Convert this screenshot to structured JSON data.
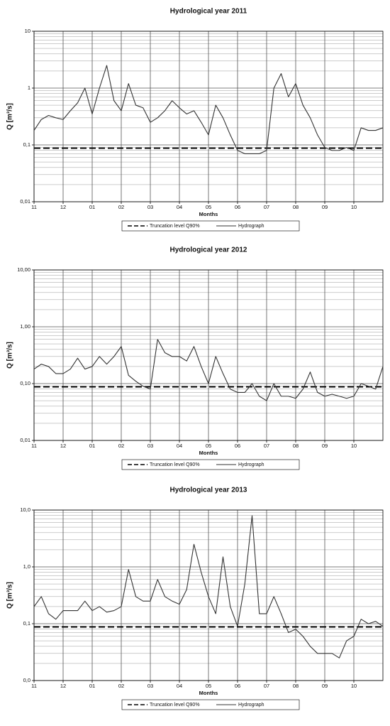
{
  "chart_data": [
    {
      "type": "line",
      "title": "Hydrological year 2011",
      "xlabel": "Months",
      "ylabel": "Q [m³/s]",
      "log_scale_y": true,
      "grid": true,
      "minor_grid": true,
      "legend": "bottom",
      "xlim": [
        0,
        12
      ],
      "xticks": [
        {
          "value": 0,
          "label": "11"
        },
        {
          "value": 1,
          "label": "12"
        },
        {
          "value": 2,
          "label": "01"
        },
        {
          "value": 3,
          "label": "02"
        },
        {
          "value": 4,
          "label": "03"
        },
        {
          "value": 5,
          "label": "04"
        },
        {
          "value": 6,
          "label": "05"
        },
        {
          "value": 7,
          "label": "06"
        },
        {
          "value": 8,
          "label": "07"
        },
        {
          "value": 9,
          "label": "08"
        },
        {
          "value": 10,
          "label": "09"
        },
        {
          "value": 11,
          "label": "10"
        }
      ],
      "ylim": [
        0.01,
        10
      ],
      "yticks": [
        {
          "value": 0.01,
          "label": "0,01"
        },
        {
          "value": 0.1,
          "label": "0,1"
        },
        1,
        10
      ],
      "series": [
        {
          "name": "Truncation level Q90%",
          "color": "#000000",
          "line_style": "dashed",
          "x": [
            0,
            12
          ],
          "values": [
            0.088,
            0.088
          ]
        },
        {
          "name": "Hydrograph",
          "color": "#333333",
          "line_style": "solid",
          "x": [
            0,
            0.25,
            0.5,
            0.75,
            1,
            1.25,
            1.5,
            1.75,
            2,
            2.25,
            2.5,
            2.75,
            3,
            3.25,
            3.5,
            3.75,
            4,
            4.25,
            4.5,
            4.75,
            5,
            5.25,
            5.5,
            5.75,
            6,
            6.25,
            6.5,
            6.75,
            7,
            7.25,
            7.5,
            7.75,
            8,
            8.25,
            8.5,
            8.75,
            9,
            9.25,
            9.5,
            9.75,
            10,
            10.25,
            10.5,
            10.75,
            11,
            11.25,
            11.5,
            11.75,
            12
          ],
          "values": [
            0.18,
            0.28,
            0.33,
            0.3,
            0.28,
            0.4,
            0.55,
            1.0,
            0.35,
            1.0,
            2.5,
            0.6,
            0.4,
            1.2,
            0.5,
            0.45,
            0.25,
            0.3,
            0.4,
            0.6,
            0.45,
            0.35,
            0.4,
            0.25,
            0.15,
            0.5,
            0.3,
            0.15,
            0.08,
            0.07,
            0.07,
            0.07,
            0.08,
            1.0,
            1.8,
            0.7,
            1.2,
            0.5,
            0.3,
            0.15,
            0.09,
            0.08,
            0.08,
            0.09,
            0.08,
            0.2,
            0.18,
            0.18,
            0.2
          ]
        }
      ]
    },
    {
      "type": "line",
      "title": "Hydrological year 2012",
      "xlabel": "Months",
      "ylabel": "Q [m³/s]",
      "log_scale_y": true,
      "grid": true,
      "minor_grid": true,
      "legend": "bottom",
      "xlim": [
        0,
        12
      ],
      "xticks": [
        {
          "value": 0,
          "label": "11"
        },
        {
          "value": 1,
          "label": "12"
        },
        {
          "value": 2,
          "label": "01"
        },
        {
          "value": 3,
          "label": "02"
        },
        {
          "value": 4,
          "label": "03"
        },
        {
          "value": 5,
          "label": "04"
        },
        {
          "value": 6,
          "label": "05"
        },
        {
          "value": 7,
          "label": "06"
        },
        {
          "value": 8,
          "label": "07"
        },
        {
          "value": 9,
          "label": "08"
        },
        {
          "value": 10,
          "label": "09"
        },
        {
          "value": 11,
          "label": "10"
        }
      ],
      "ylim": [
        0.01,
        10
      ],
      "yticks": [
        {
          "value": 0.01,
          "label": "0,01"
        },
        {
          "value": 0.1,
          "label": "0,10"
        },
        {
          "value": 1,
          "label": "1,00"
        },
        {
          "value": 10,
          "label": "10,00"
        }
      ],
      "series": [
        {
          "name": "Truncation level Q90%",
          "color": "#000000",
          "line_style": "dashed",
          "x": [
            0,
            12
          ],
          "values": [
            0.088,
            0.088
          ]
        },
        {
          "name": "Hydrograph",
          "color": "#333333",
          "line_style": "solid",
          "x": [
            0,
            0.25,
            0.5,
            0.75,
            1,
            1.25,
            1.5,
            1.75,
            2,
            2.25,
            2.5,
            2.75,
            3,
            3.25,
            3.5,
            3.75,
            4,
            4.25,
            4.5,
            4.75,
            5,
            5.25,
            5.5,
            5.75,
            6,
            6.25,
            6.5,
            6.75,
            7,
            7.25,
            7.5,
            7.75,
            8,
            8.25,
            8.5,
            8.75,
            9,
            9.25,
            9.5,
            9.75,
            10,
            10.25,
            10.5,
            10.75,
            11,
            11.25,
            11.5,
            11.75,
            12
          ],
          "values": [
            0.18,
            0.22,
            0.2,
            0.15,
            0.15,
            0.18,
            0.28,
            0.18,
            0.2,
            0.3,
            0.22,
            0.3,
            0.45,
            0.14,
            0.11,
            0.09,
            0.08,
            0.6,
            0.35,
            0.3,
            0.3,
            0.25,
            0.45,
            0.2,
            0.1,
            0.3,
            0.15,
            0.08,
            0.07,
            0.07,
            0.1,
            0.06,
            0.05,
            0.1,
            0.06,
            0.06,
            0.055,
            0.08,
            0.16,
            0.07,
            0.06,
            0.065,
            0.06,
            0.055,
            0.06,
            0.1,
            0.09,
            0.08,
            0.2
          ]
        }
      ]
    },
    {
      "type": "line",
      "title": "Hydrological year 2013",
      "xlabel": "Months",
      "ylabel": "Q [m³/s]",
      "log_scale_y": true,
      "grid": true,
      "minor_grid": true,
      "legend": "bottom",
      "xlim": [
        0,
        12
      ],
      "xticks": [
        {
          "value": 0,
          "label": "11"
        },
        {
          "value": 1,
          "label": "12"
        },
        {
          "value": 2,
          "label": "01"
        },
        {
          "value": 3,
          "label": "02"
        },
        {
          "value": 4,
          "label": "03"
        },
        {
          "value": 5,
          "label": "04"
        },
        {
          "value": 6,
          "label": "05"
        },
        {
          "value": 7,
          "label": "06"
        },
        {
          "value": 8,
          "label": "07"
        },
        {
          "value": 9,
          "label": "08"
        },
        {
          "value": 10,
          "label": "09"
        },
        {
          "value": 11,
          "label": "10"
        }
      ],
      "ylim": [
        0.01,
        10
      ],
      "yticks": [
        {
          "value": 0.01,
          "label": "0,0"
        },
        {
          "value": 0.1,
          "label": "0,1"
        },
        {
          "value": 1,
          "label": "1,0"
        },
        {
          "value": 10,
          "label": "10,0"
        }
      ],
      "series": [
        {
          "name": "Truncation level Q90%",
          "color": "#000000",
          "line_style": "dashed",
          "x": [
            0,
            12
          ],
          "values": [
            0.088,
            0.088
          ]
        },
        {
          "name": "Hydrograph",
          "color": "#333333",
          "line_style": "solid",
          "x": [
            0,
            0.25,
            0.5,
            0.75,
            1,
            1.25,
            1.5,
            1.75,
            2,
            2.25,
            2.5,
            2.75,
            3,
            3.25,
            3.5,
            3.75,
            4,
            4.25,
            4.5,
            4.75,
            5,
            5.25,
            5.5,
            5.75,
            6,
            6.25,
            6.5,
            6.75,
            7,
            7.25,
            7.5,
            7.75,
            8,
            8.25,
            8.5,
            8.75,
            9,
            9.25,
            9.5,
            9.75,
            10,
            10.25,
            10.5,
            10.75,
            11,
            11.25,
            11.5,
            11.75,
            12
          ],
          "values": [
            0.2,
            0.3,
            0.15,
            0.12,
            0.17,
            0.17,
            0.17,
            0.25,
            0.17,
            0.2,
            0.16,
            0.17,
            0.2,
            0.9,
            0.3,
            0.25,
            0.25,
            0.6,
            0.3,
            0.25,
            0.22,
            0.4,
            2.5,
            0.8,
            0.3,
            0.15,
            1.5,
            0.2,
            0.09,
            0.5,
            8.0,
            0.15,
            0.15,
            0.3,
            0.15,
            0.07,
            0.08,
            0.06,
            0.04,
            0.03,
            0.03,
            0.03,
            0.025,
            0.05,
            0.06,
            0.12,
            0.1,
            0.11,
            0.09
          ]
        }
      ]
    }
  ]
}
